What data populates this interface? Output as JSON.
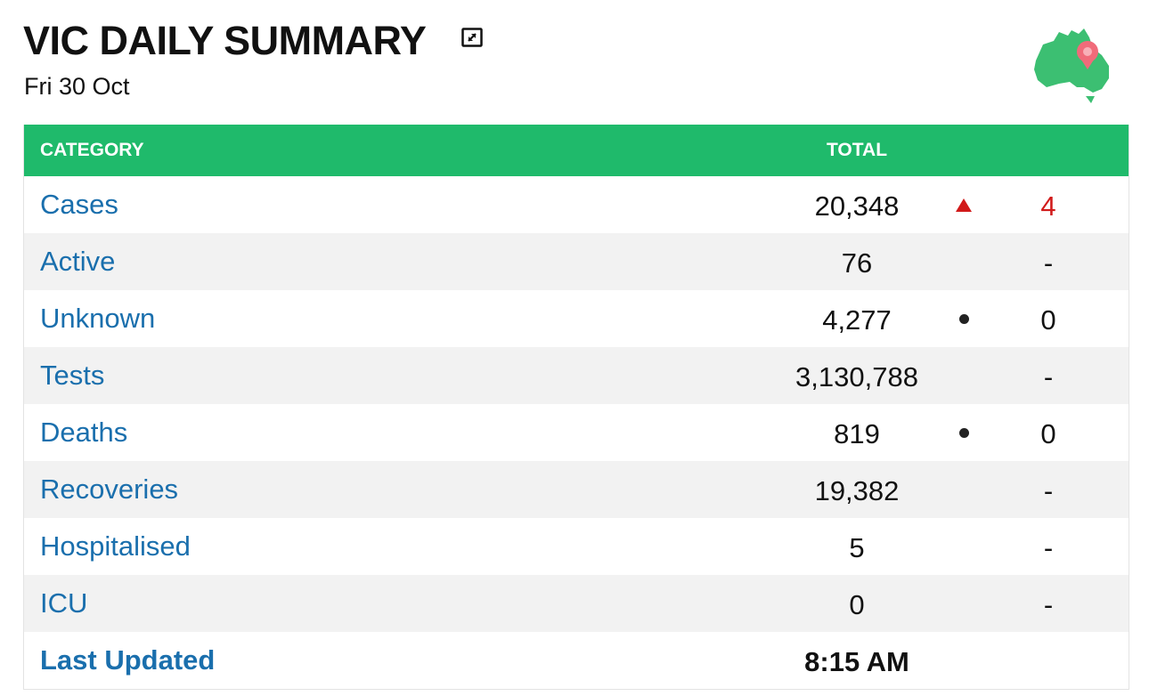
{
  "header": {
    "title": "VIC DAILY SUMMARY",
    "date": "Fri 30 Oct",
    "expand_icon": "expand-icon",
    "map_icon": "australia-map-pin-icon"
  },
  "colors": {
    "header_bg": "#1fba6b",
    "link": "#1a6fad",
    "increase": "#d11a1a",
    "alt_row": "#f2f2f2"
  },
  "table": {
    "columns": {
      "category": "CATEGORY",
      "total": "TOTAL"
    },
    "rows": [
      {
        "category": "Cases",
        "total": "20,348",
        "indicator": "up",
        "change": "4"
      },
      {
        "category": "Active",
        "total": "76",
        "indicator": "",
        "change": "-"
      },
      {
        "category": "Unknown",
        "total": "4,277",
        "indicator": "dot",
        "change": "0"
      },
      {
        "category": "Tests",
        "total": "3,130,788",
        "indicator": "",
        "change": "-"
      },
      {
        "category": "Deaths",
        "total": "819",
        "indicator": "dot",
        "change": "0"
      },
      {
        "category": "Recoveries",
        "total": "19,382",
        "indicator": "",
        "change": "-"
      },
      {
        "category": "Hospitalised",
        "total": "5",
        "indicator": "",
        "change": "-"
      },
      {
        "category": "ICU",
        "total": "0",
        "indicator": "",
        "change": "-"
      }
    ],
    "last_updated": {
      "label": "Last Updated",
      "value": "8:15 AM"
    }
  }
}
